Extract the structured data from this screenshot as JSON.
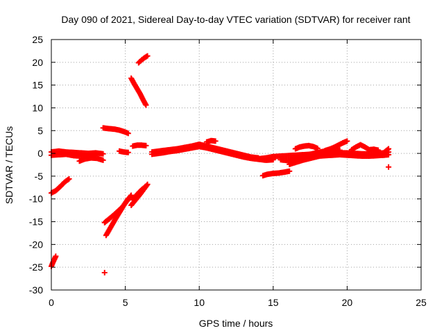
{
  "chart_data": {
    "type": "scatter",
    "title": "Day 090 of 2021, Sidereal Day-to-day VTEC variation (SDTVAR) for receiver rant",
    "xlabel": "GPS time / hours",
    "ylabel": "SDTVAR / TECUs",
    "xlim": [
      0,
      25
    ],
    "ylim": [
      -30,
      25
    ],
    "xticks": [
      0,
      5,
      10,
      15,
      20,
      25
    ],
    "yticks": [
      -30,
      -25,
      -20,
      -15,
      -10,
      -5,
      0,
      5,
      10,
      15,
      20,
      25
    ],
    "xtick_labels": [
      "0",
      "5",
      "10",
      "15",
      "20",
      "25"
    ],
    "ytick_labels": [
      "-30",
      "-25",
      "-20",
      "-15",
      "-10",
      "-5",
      "0",
      "5",
      "10",
      "15",
      "20",
      "25"
    ],
    "grid": true,
    "marker": "+",
    "color": "#ff0000",
    "segments": [
      {
        "x": [
          0.0,
          0.5,
          1.0,
          1.5,
          2.0,
          2.5,
          3.0,
          3.5
        ],
        "y": [
          0.3,
          0.5,
          0.3,
          0.2,
          0.1,
          0.0,
          0.1,
          -0.1
        ]
      },
      {
        "x": [
          0.0,
          0.5,
          1.0,
          1.5,
          2.0,
          2.5,
          3.0
        ],
        "y": [
          -0.4,
          -0.3,
          -0.2,
          -0.5,
          -0.6,
          -0.3,
          -0.2
        ]
      },
      {
        "x": [
          1.9,
          2.3,
          2.7,
          3.1,
          3.5
        ],
        "y": [
          -1.7,
          -1.2,
          -1.0,
          -1.1,
          -1.5
        ]
      },
      {
        "x": [
          0.0,
          0.3,
          0.6,
          0.9,
          1.2
        ],
        "y": [
          -8.7,
          -8.2,
          -7.3,
          -6.3,
          -5.6
        ]
      },
      {
        "x": [
          0.0,
          0.1,
          0.2,
          0.3
        ],
        "y": [
          -24.8,
          -24.0,
          -23.3,
          -22.6
        ]
      },
      {
        "x": [
          3.6
        ],
        "y": [
          -26.2
        ]
      },
      {
        "x": [
          3.5,
          3.7,
          4.0,
          4.3,
          4.6,
          4.9,
          5.2
        ],
        "y": [
          5.6,
          5.5,
          5.4,
          5.3,
          5.1,
          4.8,
          4.4
        ]
      },
      {
        "x": [
          5.4,
          5.6,
          5.8,
          6.0,
          6.2,
          6.4
        ],
        "y": [
          16.5,
          15.3,
          14.2,
          13.1,
          11.8,
          10.6
        ]
      },
      {
        "x": [
          5.9,
          6.1,
          6.3,
          6.5
        ],
        "y": [
          19.9,
          20.5,
          21.0,
          21.4
        ]
      },
      {
        "x": [
          3.7,
          4.0,
          4.3,
          4.6,
          4.9,
          5.2
        ],
        "y": [
          -18.0,
          -16.3,
          -14.6,
          -13.0,
          -11.4,
          -9.9
        ]
      },
      {
        "x": [
          3.6,
          3.9,
          4.2,
          4.5,
          4.8,
          5.1,
          5.4
        ],
        "y": [
          -15.2,
          -14.4,
          -13.6,
          -12.7,
          -11.8,
          -10.5,
          -9.2
        ]
      },
      {
        "x": [
          5.4,
          5.7,
          6.0,
          6.3,
          6.5
        ],
        "y": [
          -11.4,
          -10.2,
          -9.0,
          -7.7,
          -6.8
        ]
      },
      {
        "x": [
          5.5,
          5.8,
          6.1,
          6.4
        ],
        "y": [
          -10.2,
          -9.0,
          -8.0,
          -7.2
        ]
      },
      {
        "x": [
          4.6,
          4.9,
          5.2
        ],
        "y": [
          0.5,
          0.3,
          0.2
        ]
      },
      {
        "x": [
          5.5,
          5.8,
          6.1,
          6.4
        ],
        "y": [
          1.6,
          1.8,
          1.8,
          1.7
        ]
      },
      {
        "x": [
          6.8,
          7.5,
          8.0,
          8.5,
          9.0,
          9.5,
          10.0,
          10.5,
          11.0,
          11.5,
          12.0,
          12.5,
          13.0,
          13.5,
          14.0
        ],
        "y": [
          0.3,
          0.6,
          0.8,
          1.0,
          1.3,
          1.6,
          2.0,
          1.6,
          1.2,
          0.8,
          0.4,
          0.0,
          -0.4,
          -0.8,
          -1.0
        ]
      },
      {
        "x": [
          6.8,
          7.5,
          8.0,
          8.5,
          9.0,
          9.5,
          10.0,
          10.5,
          11.0,
          11.5,
          12.0,
          12.5,
          13.0,
          13.5,
          14.0,
          14.5,
          15.0
        ],
        "y": [
          -0.2,
          0.1,
          0.4,
          0.6,
          0.9,
          1.2,
          1.5,
          1.2,
          0.8,
          0.4,
          0.0,
          -0.4,
          -0.8,
          -1.1,
          -1.3,
          -1.5,
          -1.4
        ]
      },
      {
        "x": [
          10.5,
          10.8,
          11.1
        ],
        "y": [
          2.5,
          2.8,
          2.7
        ]
      },
      {
        "x": [
          14.0,
          14.5,
          15.0,
          15.5,
          16.0,
          16.5,
          17.0,
          17.5,
          18.0,
          18.5,
          19.0,
          19.5,
          20.0,
          20.5,
          21.0,
          21.5,
          22.0,
          22.5,
          22.8
        ],
        "y": [
          -1.2,
          -1.0,
          -0.7,
          -0.6,
          -0.5,
          -0.4,
          -0.3,
          -0.2,
          -0.2,
          -0.1,
          0.0,
          0.1,
          0.1,
          0.0,
          -0.1,
          -0.1,
          0.0,
          0.1,
          0.3
        ]
      },
      {
        "x": [
          15.5,
          16.0,
          16.5,
          17.0,
          17.5,
          18.0,
          18.5,
          19.0,
          19.5,
          20.0,
          20.5,
          21.0,
          21.5,
          22.0,
          22.5,
          22.8
        ],
        "y": [
          -1.4,
          -1.6,
          -1.2,
          -0.9,
          -0.7,
          -0.6,
          -0.5,
          -0.4,
          -0.3,
          -0.4,
          -0.5,
          -0.6,
          -0.6,
          -0.5,
          -0.4,
          -0.3
        ]
      },
      {
        "x": [
          14.3,
          14.6,
          15.0,
          15.4,
          15.8,
          16.1
        ],
        "y": [
          -4.9,
          -4.6,
          -4.4,
          -4.3,
          -4.1,
          -3.9
        ]
      },
      {
        "x": [
          16.1,
          16.5,
          17.0,
          17.5,
          18.0,
          18.5,
          19.0,
          19.5
        ],
        "y": [
          -2.4,
          -2.0,
          -1.5,
          -1.1,
          -0.7,
          -0.3,
          0.2,
          0.7
        ]
      },
      {
        "x": [
          16.1,
          16.5,
          17.0,
          17.5,
          18.0,
          18.5,
          19.0
        ],
        "y": [
          -1.8,
          -1.3,
          -0.7,
          -0.2,
          0.2,
          0.5,
          0.6
        ]
      },
      {
        "x": [
          16.5,
          16.8,
          17.1,
          17.4,
          17.7,
          18.0
        ],
        "y": [
          1.0,
          1.4,
          1.6,
          1.7,
          1.5,
          1.1
        ]
      },
      {
        "x": [
          18.5,
          18.8,
          19.1,
          19.4,
          19.7,
          20.0
        ],
        "y": [
          0.6,
          0.9,
          1.3,
          1.8,
          2.3,
          2.7
        ]
      },
      {
        "x": [
          20.3,
          20.6,
          20.9,
          21.2,
          21.5,
          21.8,
          22.1
        ],
        "y": [
          0.8,
          1.4,
          1.9,
          1.4,
          0.8,
          0.9,
          0.7
        ]
      },
      {
        "x": [
          22.2,
          22.5,
          22.8
        ],
        "y": [
          -0.4,
          0.2,
          1.0
        ]
      },
      {
        "x": [
          22.8
        ],
        "y": [
          -3.0
        ]
      }
    ]
  }
}
